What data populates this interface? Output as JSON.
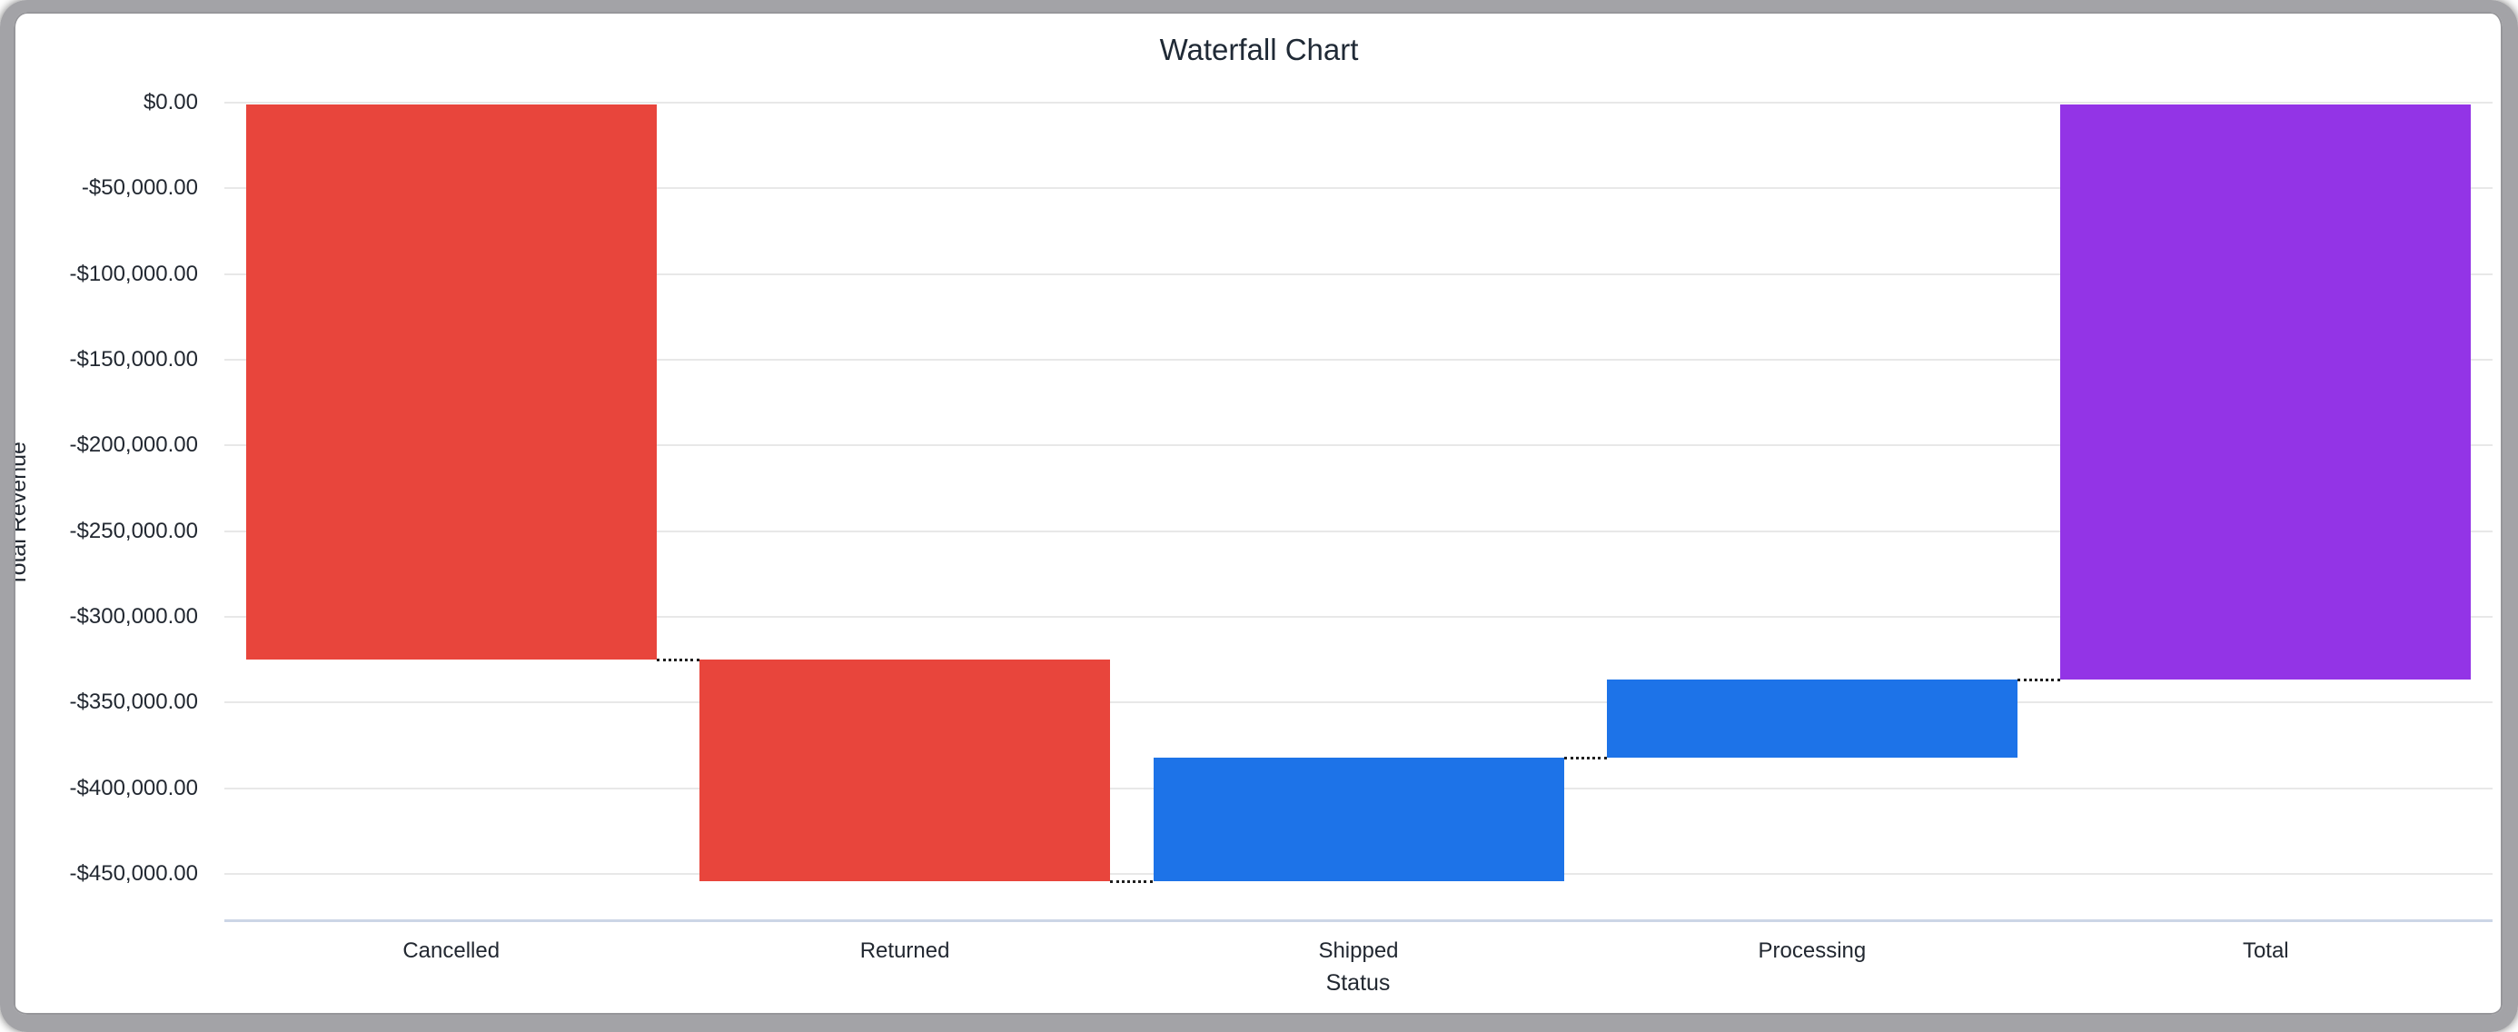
{
  "window": {
    "frame_color": "#a3a3a7",
    "background_color": "#ffffff"
  },
  "chart_data": {
    "type": "waterfall",
    "title": "Waterfall Chart",
    "xlabel": "Status",
    "ylabel": "Total Revenue",
    "categories": [
      "Cancelled",
      "Returned",
      "Shipped",
      "Processing",
      "Total"
    ],
    "bars": [
      {
        "label": "Cancelled",
        "kind": "decrease",
        "delta": -325000,
        "start": 0,
        "end": -325000,
        "color": "#E8453C"
      },
      {
        "label": "Returned",
        "kind": "decrease",
        "delta": -129300,
        "start": -325000,
        "end": -454300,
        "color": "#E8453C"
      },
      {
        "label": "Shipped",
        "kind": "increase",
        "delta": 72100,
        "start": -454300,
        "end": -382200,
        "color": "#1D73E8"
      },
      {
        "label": "Processing",
        "kind": "increase",
        "delta": 45600,
        "start": -382200,
        "end": -336600,
        "color": "#1D73E8"
      },
      {
        "label": "Total",
        "kind": "total",
        "delta": -336600,
        "start": 0,
        "end": -336600,
        "color": "#9334E6"
      }
    ],
    "y_ticks": [
      {
        "value": 0,
        "label": "$0.00"
      },
      {
        "value": -50000,
        "label": "-$50,000.00"
      },
      {
        "value": -100000,
        "label": "-$100,000.00"
      },
      {
        "value": -150000,
        "label": "-$150,000.00"
      },
      {
        "value": -200000,
        "label": "-$200,000.00"
      },
      {
        "value": -250000,
        "label": "-$250,000.00"
      },
      {
        "value": -300000,
        "label": "-$300,000.00"
      },
      {
        "value": -350000,
        "label": "-$350,000.00"
      },
      {
        "value": -400000,
        "label": "-$400,000.00"
      },
      {
        "value": -450000,
        "label": "-$450,000.00"
      }
    ],
    "ylim": [
      -478000,
      0
    ],
    "grid": true,
    "legend_position": "none",
    "connector_style": "dotted",
    "gridline_color": "#e8e8e8",
    "baseline_color": "#ccd6e6",
    "text_color": "#222831"
  }
}
